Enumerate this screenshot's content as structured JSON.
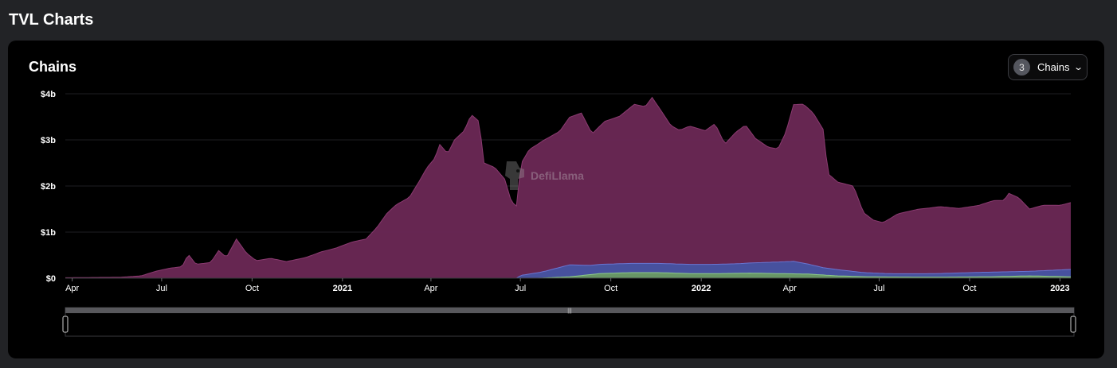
{
  "page": {
    "title": "TVL Charts"
  },
  "card": {
    "title": "Chains"
  },
  "chains_select": {
    "count": "3",
    "label": "Chains"
  },
  "watermark": {
    "text": "DefiLlama"
  },
  "chart_data": {
    "type": "area",
    "stacked": true,
    "y_unit": "USD",
    "ylim": [
      0,
      4000000000
    ],
    "y_ticks": [
      "$0",
      "$1b",
      "$2b",
      "$3b",
      "$4b"
    ],
    "x_range": [
      "2020-03-25",
      "2023-01-12"
    ],
    "x_ticks": [
      {
        "label": "Apr",
        "date": "2020-04-01",
        "bold": false
      },
      {
        "label": "Jul",
        "date": "2020-07-01",
        "bold": false
      },
      {
        "label": "Oct",
        "date": "2020-10-01",
        "bold": false
      },
      {
        "label": "2021",
        "date": "2021-01-01",
        "bold": true
      },
      {
        "label": "Apr",
        "date": "2021-04-01",
        "bold": false
      },
      {
        "label": "Jul",
        "date": "2021-07-01",
        "bold": false
      },
      {
        "label": "Oct",
        "date": "2021-10-01",
        "bold": false
      },
      {
        "label": "2022",
        "date": "2022-01-01",
        "bold": true
      },
      {
        "label": "Apr",
        "date": "2022-04-01",
        "bold": false
      },
      {
        "label": "Jul",
        "date": "2022-07-01",
        "bold": false
      },
      {
        "label": "Oct",
        "date": "2022-10-01",
        "bold": false
      },
      {
        "label": "2023",
        "date": "2023-01-01",
        "bold": true
      }
    ],
    "grid": true,
    "legend": "none",
    "series": [
      {
        "color": "#6b2855",
        "stroke": "#8a3a70",
        "points": [
          [
            "2020-03-25",
            0.01
          ],
          [
            "2020-05-20",
            0.02
          ],
          [
            "2020-06-10",
            0.05
          ],
          [
            "2020-06-25",
            0.15
          ],
          [
            "2020-07-10",
            0.22
          ],
          [
            "2020-07-22",
            0.25
          ],
          [
            "2020-07-28",
            0.52
          ],
          [
            "2020-08-05",
            0.3
          ],
          [
            "2020-08-20",
            0.34
          ],
          [
            "2020-08-28",
            0.6
          ],
          [
            "2020-09-05",
            0.45
          ],
          [
            "2020-09-15",
            0.85
          ],
          [
            "2020-09-25",
            0.55
          ],
          [
            "2020-10-05",
            0.38
          ],
          [
            "2020-10-20",
            0.43
          ],
          [
            "2020-11-05",
            0.36
          ],
          [
            "2020-11-25",
            0.45
          ],
          [
            "2020-12-10",
            0.57
          ],
          [
            "2020-12-25",
            0.65
          ],
          [
            "2021-01-10",
            0.78
          ],
          [
            "2021-01-25",
            0.85
          ],
          [
            "2021-02-05",
            1.1
          ],
          [
            "2021-02-15",
            1.4
          ],
          [
            "2021-02-25",
            1.6
          ],
          [
            "2021-03-10",
            1.75
          ],
          [
            "2021-03-20",
            2.1
          ],
          [
            "2021-03-28",
            2.4
          ],
          [
            "2021-04-05",
            2.6
          ],
          [
            "2021-04-10",
            2.9
          ],
          [
            "2021-04-18",
            2.7
          ],
          [
            "2021-04-25",
            3.0
          ],
          [
            "2021-05-05",
            3.2
          ],
          [
            "2021-05-12",
            3.55
          ],
          [
            "2021-05-20",
            3.4
          ],
          [
            "2021-05-25",
            2.5
          ],
          [
            "2021-06-05",
            2.4
          ],
          [
            "2021-06-15",
            2.15
          ],
          [
            "2021-06-22",
            1.65
          ],
          [
            "2021-06-28",
            1.55
          ],
          [
            "2021-07-01",
            2.4
          ],
          [
            "2021-07-10",
            2.7
          ],
          [
            "2021-07-25",
            2.85
          ],
          [
            "2021-08-10",
            2.95
          ],
          [
            "2021-08-20",
            3.2
          ],
          [
            "2021-09-01",
            3.3
          ],
          [
            "2021-09-12",
            2.85
          ],
          [
            "2021-09-25",
            3.1
          ],
          [
            "2021-10-10",
            3.2
          ],
          [
            "2021-10-25",
            3.45
          ],
          [
            "2021-11-05",
            3.4
          ],
          [
            "2021-11-12",
            3.6
          ],
          [
            "2021-11-20",
            3.35
          ],
          [
            "2021-12-01",
            3.0
          ],
          [
            "2021-12-10",
            2.9
          ],
          [
            "2021-12-20",
            3.0
          ],
          [
            "2022-01-05",
            2.9
          ],
          [
            "2022-01-15",
            3.05
          ],
          [
            "2022-01-25",
            2.6
          ],
          [
            "2022-02-05",
            2.85
          ],
          [
            "2022-02-15",
            3.0
          ],
          [
            "2022-02-25",
            2.7
          ],
          [
            "2022-03-10",
            2.5
          ],
          [
            "2022-03-20",
            2.45
          ],
          [
            "2022-03-28",
            2.8
          ],
          [
            "2022-04-05",
            3.4
          ],
          [
            "2022-04-15",
            3.45
          ],
          [
            "2022-04-25",
            3.3
          ],
          [
            "2022-05-05",
            3.0
          ],
          [
            "2022-05-10",
            2.05
          ],
          [
            "2022-05-20",
            1.9
          ],
          [
            "2022-06-05",
            1.85
          ],
          [
            "2022-06-15",
            1.3
          ],
          [
            "2022-06-25",
            1.15
          ],
          [
            "2022-07-05",
            1.1
          ],
          [
            "2022-07-20",
            1.3
          ],
          [
            "2022-08-10",
            1.4
          ],
          [
            "2022-09-01",
            1.45
          ],
          [
            "2022-09-20",
            1.4
          ],
          [
            "2022-10-10",
            1.45
          ],
          [
            "2022-10-25",
            1.55
          ],
          [
            "2022-11-05",
            1.55
          ],
          [
            "2022-11-10",
            1.7
          ],
          [
            "2022-11-20",
            1.6
          ],
          [
            "2022-12-01",
            1.35
          ],
          [
            "2022-12-15",
            1.42
          ],
          [
            "2023-01-01",
            1.4
          ],
          [
            "2023-01-12",
            1.45
          ]
        ]
      },
      {
        "color": "#4b55a6",
        "stroke": "#6a74d0",
        "points": [
          [
            "2020-03-25",
            0
          ],
          [
            "2021-06-28",
            0
          ],
          [
            "2021-07-01",
            0.06
          ],
          [
            "2021-07-25",
            0.14
          ],
          [
            "2021-08-20",
            0.26
          ],
          [
            "2021-09-10",
            0.2
          ],
          [
            "2021-10-10",
            0.2
          ],
          [
            "2021-11-10",
            0.2
          ],
          [
            "2021-12-10",
            0.2
          ],
          [
            "2022-01-10",
            0.2
          ],
          [
            "2022-02-10",
            0.21
          ],
          [
            "2022-03-10",
            0.24
          ],
          [
            "2022-04-05",
            0.27
          ],
          [
            "2022-05-05",
            0.16
          ],
          [
            "2022-06-15",
            0.09
          ],
          [
            "2022-07-15",
            0.07
          ],
          [
            "2022-09-01",
            0.08
          ],
          [
            "2022-10-15",
            0.1
          ],
          [
            "2022-12-01",
            0.1
          ],
          [
            "2023-01-12",
            0.16
          ]
        ]
      },
      {
        "color": "#6e9e6c",
        "stroke": "#8cc98a",
        "points": [
          [
            "2020-03-25",
            0
          ],
          [
            "2021-07-20",
            0
          ],
          [
            "2021-08-20",
            0.03
          ],
          [
            "2021-09-20",
            0.1
          ],
          [
            "2021-10-20",
            0.12
          ],
          [
            "2021-11-20",
            0.12
          ],
          [
            "2021-12-20",
            0.1
          ],
          [
            "2022-01-20",
            0.1
          ],
          [
            "2022-02-20",
            0.11
          ],
          [
            "2022-03-20",
            0.1
          ],
          [
            "2022-04-20",
            0.09
          ],
          [
            "2022-05-20",
            0.05
          ],
          [
            "2022-06-20",
            0.03
          ],
          [
            "2022-08-20",
            0.02
          ],
          [
            "2022-10-20",
            0.03
          ],
          [
            "2022-12-01",
            0.05
          ],
          [
            "2023-01-12",
            0.03
          ]
        ]
      }
    ]
  },
  "colors": {
    "page_bg": "#222326",
    "card_bg": "#000000",
    "grid": "#1e1e22",
    "axis_text": "#ffffff"
  }
}
